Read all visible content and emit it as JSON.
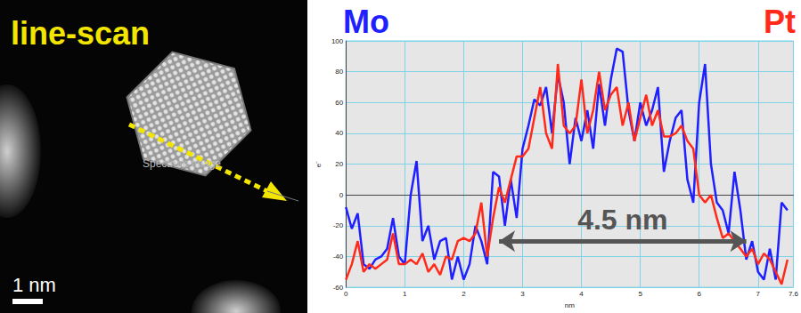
{
  "image_panel": {
    "title": "line-scan",
    "label": "Spectrum Image",
    "scale_bar": "1 nm"
  },
  "chart_data": {
    "type": "line",
    "x_label": "nm",
    "y_label": "e⁻",
    "x": [
      0,
      0.1,
      0.2,
      0.3,
      0.4,
      0.5,
      0.6,
      0.7,
      0.8,
      0.9,
      1.0,
      1.1,
      1.2,
      1.3,
      1.4,
      1.5,
      1.6,
      1.7,
      1.8,
      1.9,
      2.0,
      2.1,
      2.2,
      2.3,
      2.4,
      2.5,
      2.6,
      2.7,
      2.8,
      2.9,
      3.0,
      3.1,
      3.2,
      3.3,
      3.4,
      3.5,
      3.6,
      3.7,
      3.8,
      3.9,
      4.0,
      4.1,
      4.2,
      4.3,
      4.4,
      4.5,
      4.6,
      4.7,
      4.8,
      4.9,
      5.0,
      5.1,
      5.2,
      5.3,
      5.4,
      5.5,
      5.6,
      5.7,
      5.8,
      5.9,
      6.0,
      6.1,
      6.2,
      6.3,
      6.4,
      6.5,
      6.6,
      6.7,
      6.8,
      6.9,
      7.0,
      7.1,
      7.2,
      7.3,
      7.4,
      7.5
    ],
    "series": [
      {
        "name": "Mo",
        "color": "#1f1fff",
        "values": [
          -8,
          -22,
          -12,
          -45,
          -48,
          -42,
          -40,
          -35,
          -15,
          -40,
          -45,
          0,
          22,
          -30,
          -20,
          -42,
          -30,
          -28,
          -55,
          -40,
          -55,
          -45,
          -20,
          -30,
          -45,
          15,
          12,
          -20,
          10,
          -15,
          30,
          45,
          62,
          58,
          70,
          40,
          78,
          60,
          20,
          50,
          35,
          55,
          30,
          72,
          45,
          75,
          95,
          93,
          55,
          35,
          60,
          45,
          55,
          70,
          15,
          35,
          50,
          55,
          10,
          -5,
          60,
          85,
          20,
          -5,
          -10,
          -25,
          15,
          -10,
          -42,
          -30,
          -50,
          -55,
          -35,
          -55,
          -5,
          -10
        ]
      },
      {
        "name": "Pt",
        "color": "#ff2a1a",
        "values": [
          -55,
          -45,
          -30,
          -50,
          -45,
          -48,
          -45,
          -42,
          -25,
          -45,
          -45,
          -42,
          -45,
          -38,
          -50,
          -45,
          -52,
          -40,
          -42,
          -30,
          -28,
          -30,
          -25,
          -5,
          -40,
          -15,
          5,
          -5,
          10,
          25,
          25,
          30,
          50,
          70,
          40,
          30,
          85,
          45,
          40,
          45,
          75,
          40,
          55,
          80,
          55,
          65,
          70,
          45,
          60,
          35,
          50,
          65,
          45,
          55,
          38,
          38,
          40,
          45,
          35,
          30,
          0,
          -5,
          0,
          -15,
          -28,
          -25,
          -30,
          -35,
          -40,
          -35,
          -45,
          -38,
          -42,
          -50,
          -58,
          -42
        ]
      }
    ],
    "annotation": {
      "text": "4.5 nm",
      "x": [
        2.6,
        6.8
      ],
      "y": -30
    },
    "xlim": [
      0,
      7.6
    ],
    "xticks": [
      0,
      1,
      2,
      3,
      4,
      5,
      6,
      7
    ],
    "ylim": [
      -60,
      100
    ],
    "yticks": [
      -60,
      -40,
      -20,
      0,
      20,
      40,
      60,
      80,
      100
    ],
    "grid": true
  }
}
